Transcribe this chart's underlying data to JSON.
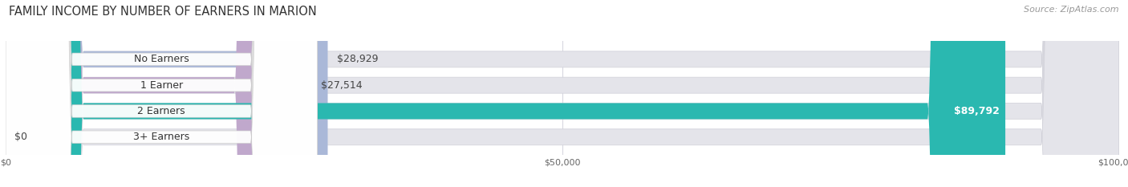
{
  "title": "FAMILY INCOME BY NUMBER OF EARNERS IN MARION",
  "source": "Source: ZipAtlas.com",
  "categories": [
    "No Earners",
    "1 Earner",
    "2 Earners",
    "3+ Earners"
  ],
  "values": [
    28929,
    27514,
    89792,
    0
  ],
  "bar_colors": [
    "#aab8d8",
    "#c0a8cc",
    "#2ab8b0",
    "#b8b8d8"
  ],
  "bar_bg_color": "#e4e4ea",
  "value_labels": [
    "$28,929",
    "$27,514",
    "$89,792",
    "$0"
  ],
  "value_label_inside": [
    false,
    false,
    true,
    false
  ],
  "xlim": [
    0,
    100000
  ],
  "xticks": [
    0,
    50000,
    100000
  ],
  "xtick_labels": [
    "$0",
    "$50,000",
    "$100,000"
  ],
  "figsize": [
    14.06,
    2.33
  ],
  "dpi": 100,
  "title_fontsize": 10.5,
  "bar_height": 0.62,
  "label_fontsize": 9,
  "value_fontsize": 9,
  "source_fontsize": 8,
  "bg_color": "#ffffff"
}
